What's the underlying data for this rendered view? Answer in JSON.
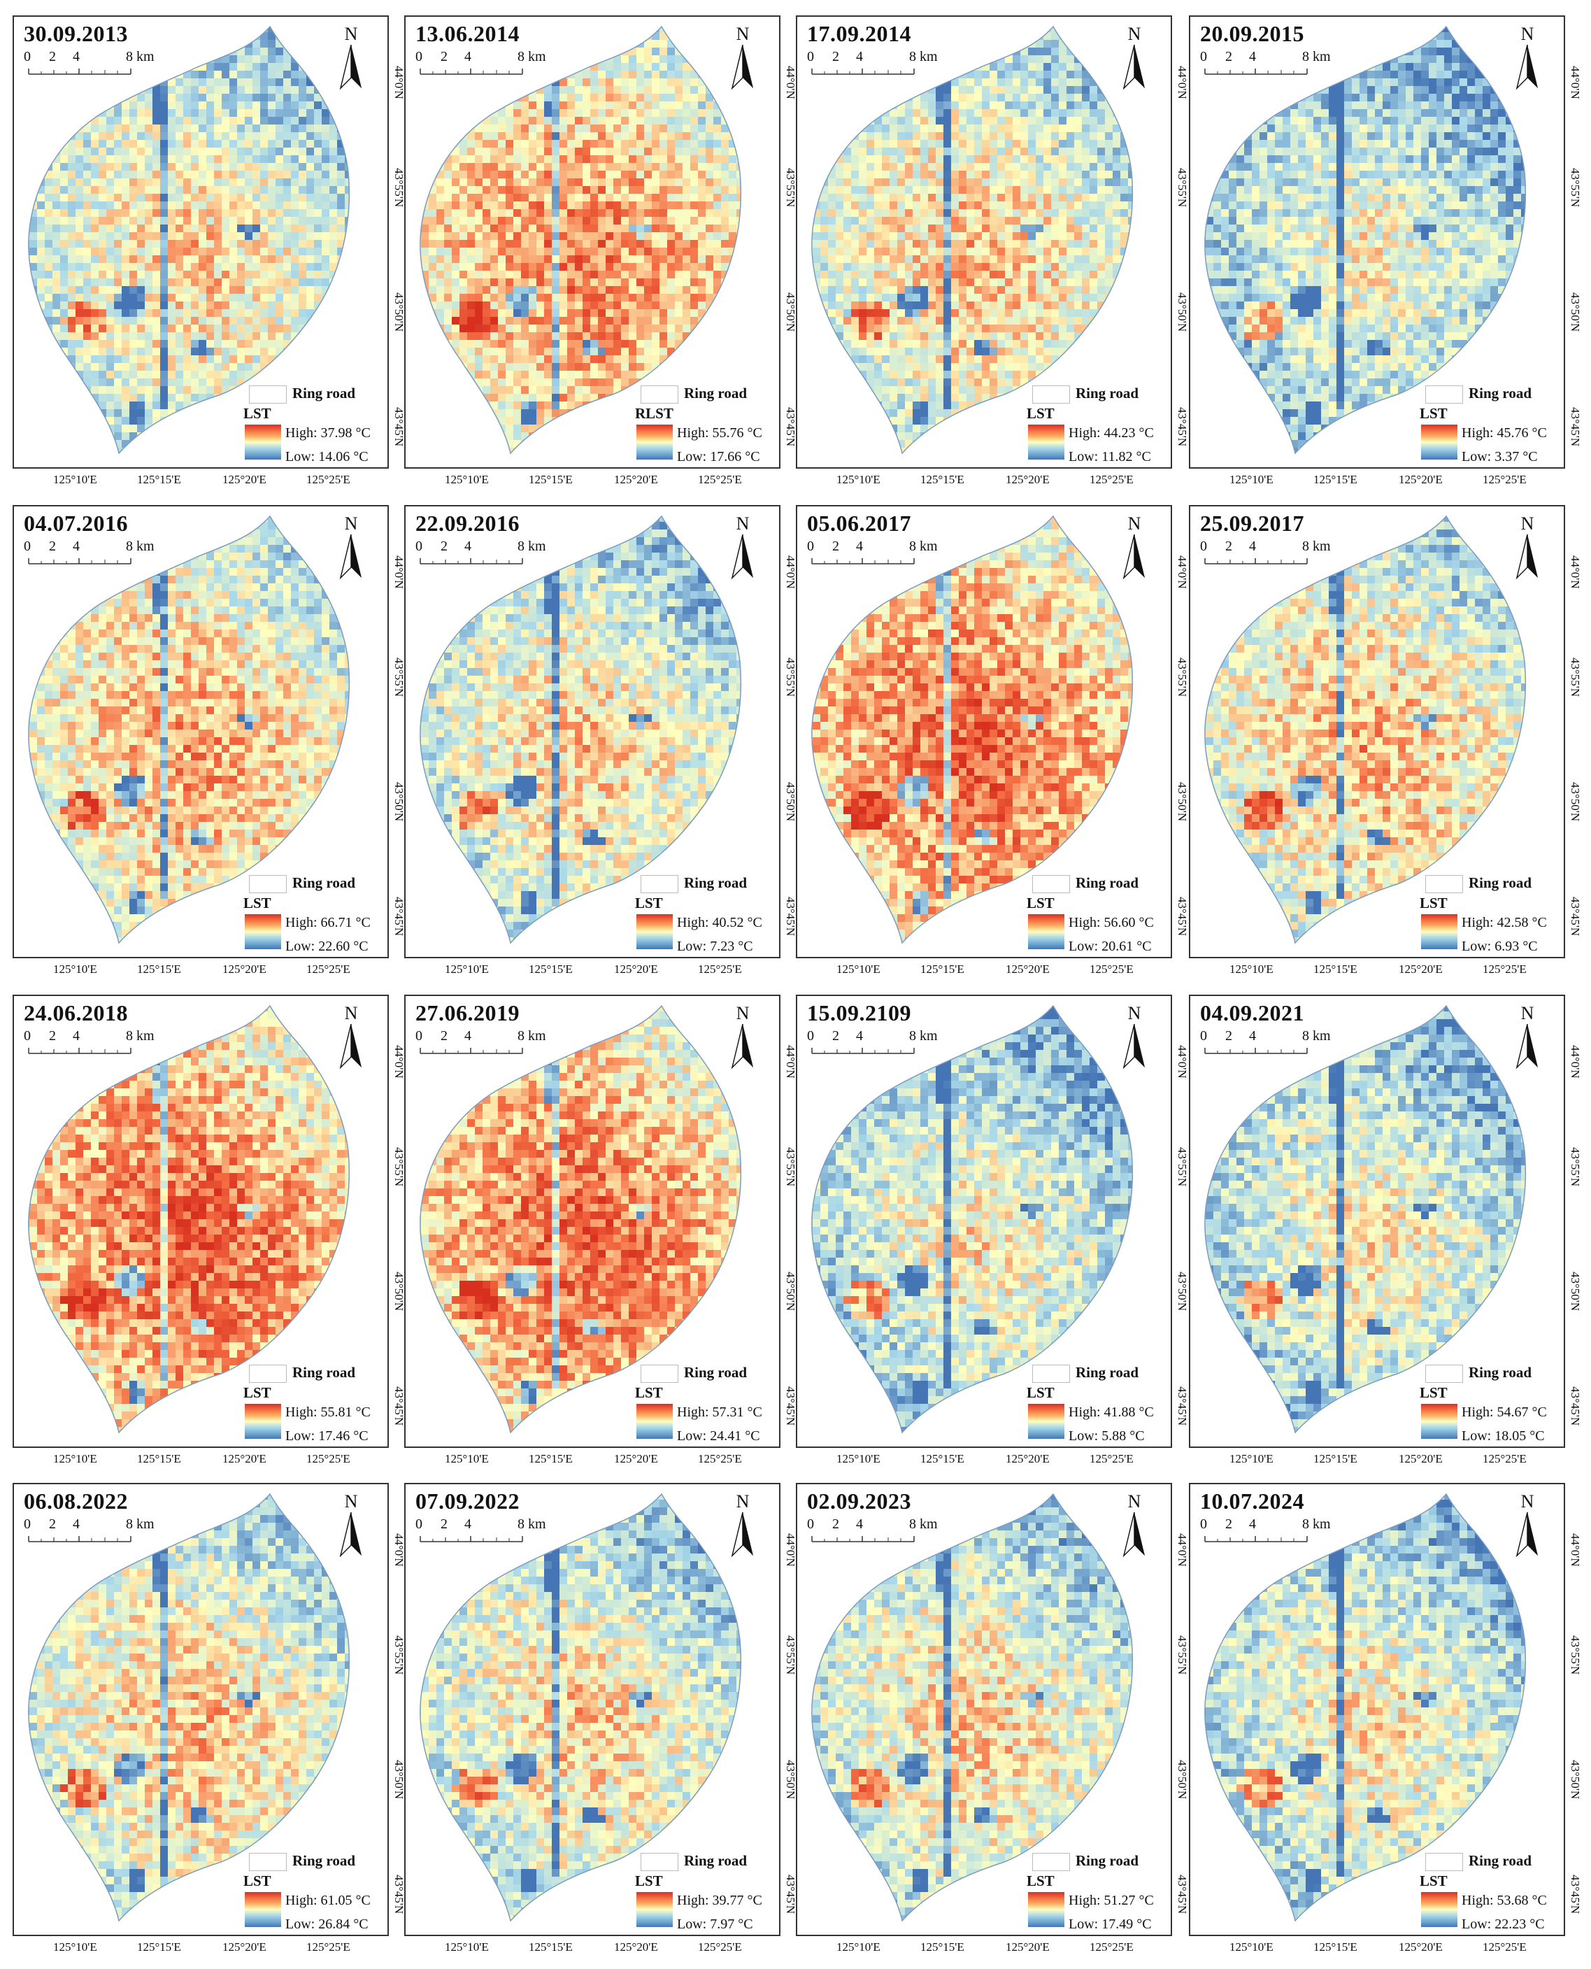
{
  "figure": {
    "legend_common": {
      "ring_road_label": "Ring road",
      "scale_labels": [
        "0",
        "2",
        "4",
        "8 km"
      ],
      "north_label": "N",
      "latitude_labels": [
        "44°0'N",
        "43°55'N",
        "43°50'N",
        "43°45'N"
      ],
      "longitude_labels": [
        "125°10'E",
        "125°15'E",
        "125°20'E",
        "125°25'E"
      ]
    },
    "colors": {
      "high": "#d7301f",
      "mid": "#ffffbf",
      "low": "#4575b4"
    },
    "panels": [
      {
        "date": "30.09.2013",
        "legend_title": "LST",
        "high": "High: 37.98 °C",
        "low": "Low: 14.06 °C",
        "warmth": 0.45
      },
      {
        "date": "13.06.2014",
        "legend_title": "RLST",
        "high": "High: 55.76 °C",
        "low": "Low: 17.66 °C",
        "warmth": 0.7
      },
      {
        "date": "17.09.2014",
        "legend_title": "LST",
        "high": "High: 44.23 °C",
        "low": "Low: 11.82 °C",
        "warmth": 0.5
      },
      {
        "date": "20.09.2015",
        "legend_title": "LST",
        "high": "High: 45.76 °C",
        "low": "Low: 3.37 °C",
        "warmth": 0.3
      },
      {
        "date": "04.07.2016",
        "legend_title": "LST",
        "high": "High: 66.71 °C",
        "low": "Low: 22.60 °C",
        "warmth": 0.6
      },
      {
        "date": "22.09.2016",
        "legend_title": "LST",
        "high": "High: 40.52 °C",
        "low": "Low: 7.23 °C",
        "warmth": 0.45
      },
      {
        "date": "05.06.2017",
        "legend_title": "LST",
        "high": "High: 56.60 °C",
        "low": "Low: 20.61 °C",
        "warmth": 0.8
      },
      {
        "date": "25.09.2017",
        "legend_title": "LST",
        "high": "High: 42.58 °C",
        "low": "Low: 6.93 °C",
        "warmth": 0.55
      },
      {
        "date": "24.06.2018",
        "legend_title": "LST",
        "high": "High: 55.81 °C",
        "low": "Low: 17.46 °C",
        "warmth": 0.82
      },
      {
        "date": "27.06.2019",
        "legend_title": "LST",
        "high": "High: 57.31 °C",
        "low": "Low: 24.41 °C",
        "warmth": 0.8
      },
      {
        "date": "15.09.2109",
        "legend_title": "LST",
        "high": "High: 41.88 °C",
        "low": "Low: 5.88 °C",
        "warmth": 0.35
      },
      {
        "date": "04.09.2021",
        "legend_title": "LST",
        "high": "High: 54.67 °C",
        "low": "Low: 18.05 °C",
        "warmth": 0.35
      },
      {
        "date": "06.08.2022",
        "legend_title": "LST",
        "high": "High: 61.05 °C",
        "low": "Low: 26.84 °C",
        "warmth": 0.5
      },
      {
        "date": "07.09.2022",
        "legend_title": "LST",
        "high": "High: 39.77 °C",
        "low": "Low: 7.97 °C",
        "warmth": 0.45
      },
      {
        "date": "02.09.2023",
        "legend_title": "LST",
        "high": "High: 51.27 °C",
        "low": "Low: 17.49 °C",
        "warmth": 0.45
      },
      {
        "date": "10.07.2024",
        "legend_title": "LST",
        "high": "High: 53.68 °C",
        "low": "Low: 22.23 °C",
        "warmth": 0.38
      }
    ]
  }
}
